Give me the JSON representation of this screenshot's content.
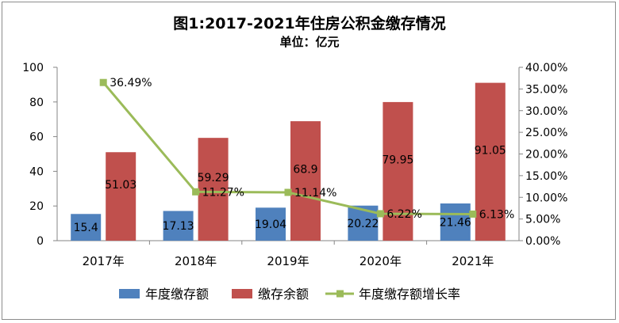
{
  "chart_data": {
    "type": "bar",
    "title": "图1:2017-2021年住房公积金缴存情况",
    "subtitle": "单位：亿元",
    "categories": [
      "2017年",
      "2018年",
      "2019年",
      "2020年",
      "2021年"
    ],
    "series": [
      {
        "name": "年度缴存额",
        "type": "bar",
        "axis": "left",
        "color": "#4f81bd",
        "values": [
          15.4,
          17.13,
          19.04,
          20.22,
          21.46
        ],
        "labels": [
          "15.4",
          "17.13",
          "19.04",
          "20.22",
          "21.46"
        ]
      },
      {
        "name": "缴存余额",
        "type": "bar",
        "axis": "left",
        "color": "#c0504d",
        "values": [
          51.03,
          59.29,
          68.9,
          79.95,
          91.05
        ],
        "labels": [
          "51.03",
          "59.29",
          "68.9",
          "79.95",
          "91.05"
        ]
      },
      {
        "name": "年度缴存额增长率",
        "type": "line",
        "axis": "right",
        "color": "#9bbb59",
        "values": [
          36.49,
          11.27,
          11.14,
          6.22,
          6.13
        ],
        "labels": [
          "36.49%",
          "11.27%",
          "11.14%",
          "6.22%",
          "6.13%"
        ]
      }
    ],
    "y_left": {
      "ylim": [
        0,
        100
      ],
      "ticks": [
        "0",
        "20",
        "40",
        "60",
        "80",
        "100"
      ]
    },
    "y_right": {
      "ylim": [
        0,
        40
      ],
      "ticks": [
        "0.00%",
        "5.00%",
        "10.00%",
        "15.00%",
        "20.00%",
        "25.00%",
        "30.00%",
        "35.00%",
        "40.00%"
      ]
    },
    "grid": false,
    "legend": "bottom"
  }
}
